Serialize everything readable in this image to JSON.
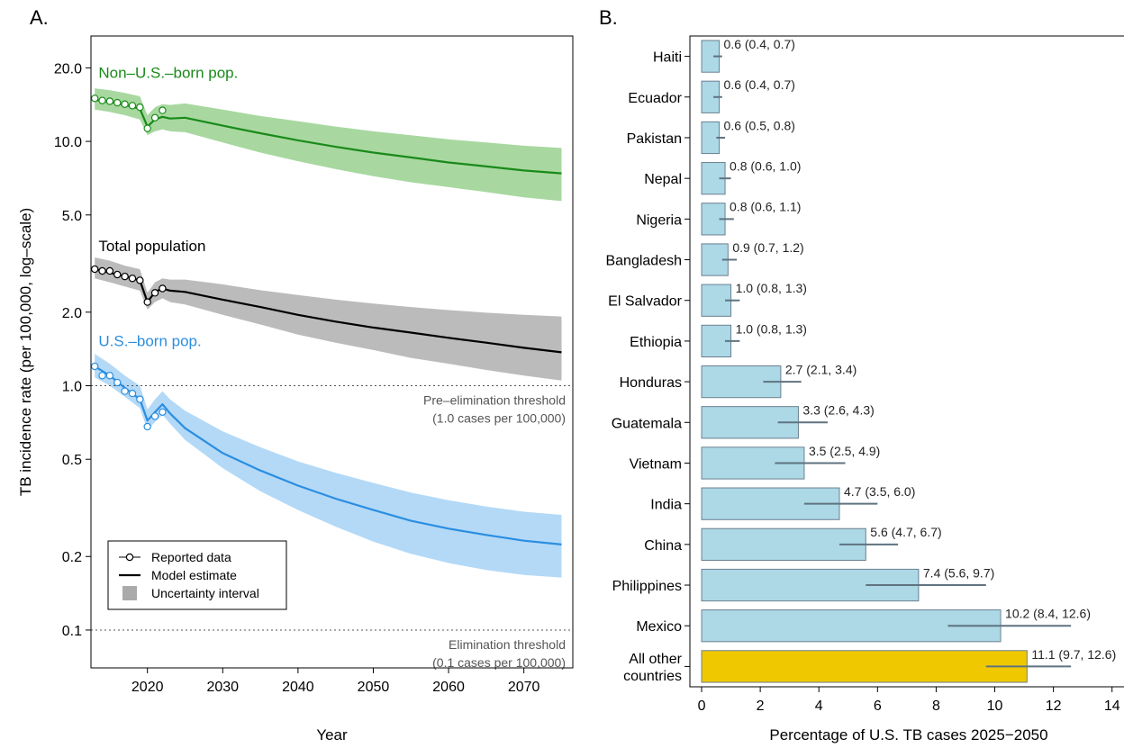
{
  "panels": {
    "a_tag": "A.",
    "b_tag": "B."
  },
  "chart_data": [
    {
      "type": "line",
      "panel": "A.",
      "xlabel": "Year",
      "ylabel": "TB incidence rate (per 100,000, log–scale)",
      "xlim": [
        2012.5,
        2076.5
      ],
      "ylim": [
        0.07,
        27
      ],
      "yscale": "log",
      "x_ticks": [
        2020,
        2030,
        2040,
        2050,
        2060,
        2070
      ],
      "y_ticks": [
        0.1,
        0.2,
        0.5,
        1.0,
        2.0,
        5.0,
        10.0,
        20.0
      ],
      "y_tick_labels": [
        "0.1",
        "0.2",
        "0.5",
        "1.0",
        "2.0",
        "5.0",
        "10.0",
        "20.0"
      ],
      "grid": false,
      "thresholds": [
        {
          "y": 1.0,
          "line1": "Pre–elimination threshold",
          "line2": "(1.0 cases per 100,000)"
        },
        {
          "y": 0.1,
          "line1": "Elimination threshold",
          "line2": "(0.1 cases per 100,000)"
        }
      ],
      "legend": {
        "placement": "bottom-left",
        "items": [
          "Reported data",
          "Model estimate",
          "Uncertainty interval"
        ]
      },
      "series": [
        {
          "name": "Non–U.S.–born pop.",
          "color": "#1a8a1a",
          "band_color": "#a8d8a0",
          "reported_x": [
            2013,
            2014,
            2015,
            2016,
            2017,
            2018,
            2019,
            2020,
            2021,
            2022
          ],
          "reported_y": [
            15.0,
            14.7,
            14.6,
            14.4,
            14.2,
            14.0,
            13.8,
            11.3,
            12.5,
            13.4
          ],
          "model_x": [
            2013,
            2015,
            2017,
            2019,
            2020,
            2021,
            2022,
            2023,
            2025,
            2030,
            2035,
            2040,
            2045,
            2050,
            2055,
            2060,
            2065,
            2070,
            2075
          ],
          "model_y": [
            14.8,
            14.5,
            14.1,
            13.6,
            11.5,
            12.3,
            12.6,
            12.4,
            12.5,
            11.6,
            10.8,
            10.1,
            9.5,
            9.0,
            8.6,
            8.2,
            7.9,
            7.6,
            7.4
          ],
          "lower_y": [
            13.5,
            13.2,
            12.8,
            12.3,
            10.6,
            11.0,
            11.2,
            11.0,
            10.9,
            9.9,
            9.0,
            8.3,
            7.7,
            7.2,
            6.8,
            6.5,
            6.2,
            5.9,
            5.7
          ],
          "upper_y": [
            16.5,
            16.2,
            15.8,
            15.3,
            12.8,
            13.8,
            14.2,
            14.1,
            14.3,
            13.5,
            12.7,
            12.1,
            11.5,
            11.0,
            10.6,
            10.2,
            9.9,
            9.6,
            9.4
          ]
        },
        {
          "name": "Total population",
          "color": "#000000",
          "band_color": "#bbbbbb",
          "reported_x": [
            2013,
            2014,
            2015,
            2016,
            2017,
            2018,
            2019,
            2020,
            2021,
            2022
          ],
          "reported_y": [
            3.0,
            2.95,
            2.95,
            2.85,
            2.8,
            2.75,
            2.7,
            2.2,
            2.4,
            2.5
          ],
          "model_x": [
            2013,
            2015,
            2017,
            2019,
            2020,
            2021,
            2022,
            2023,
            2025,
            2030,
            2035,
            2040,
            2045,
            2050,
            2055,
            2060,
            2065,
            2070,
            2075
          ],
          "model_y": [
            3.0,
            2.9,
            2.8,
            2.7,
            2.2,
            2.42,
            2.5,
            2.45,
            2.42,
            2.25,
            2.1,
            1.95,
            1.83,
            1.73,
            1.65,
            1.57,
            1.5,
            1.43,
            1.37
          ],
          "lower_y": [
            2.75,
            2.65,
            2.55,
            2.45,
            2.05,
            2.2,
            2.28,
            2.2,
            2.15,
            1.95,
            1.78,
            1.62,
            1.5,
            1.4,
            1.3,
            1.23,
            1.16,
            1.1,
            1.05
          ],
          "upper_y": [
            3.35,
            3.25,
            3.1,
            3.0,
            2.4,
            2.65,
            2.75,
            2.72,
            2.72,
            2.6,
            2.46,
            2.35,
            2.25,
            2.17,
            2.1,
            2.04,
            1.99,
            1.95,
            1.92
          ]
        },
        {
          "name": "U.S.–born pop.",
          "color": "#2b8ee0",
          "band_color": "#b3d9f7",
          "reported_x": [
            2013,
            2014,
            2015,
            2016,
            2017,
            2018,
            2019,
            2020,
            2021,
            2022
          ],
          "reported_y": [
            1.2,
            1.1,
            1.1,
            1.03,
            0.95,
            0.93,
            0.88,
            0.68,
            0.75,
            0.78
          ],
          "model_x": [
            2013,
            2015,
            2017,
            2019,
            2020,
            2021,
            2022,
            2023,
            2025,
            2030,
            2035,
            2040,
            2045,
            2050,
            2055,
            2060,
            2065,
            2070,
            2075
          ],
          "model_y": [
            1.2,
            1.1,
            0.98,
            0.88,
            0.72,
            0.78,
            0.84,
            0.77,
            0.67,
            0.53,
            0.45,
            0.39,
            0.345,
            0.31,
            0.28,
            0.26,
            0.245,
            0.232,
            0.224
          ],
          "lower_y": [
            1.08,
            1.0,
            0.9,
            0.81,
            0.66,
            0.71,
            0.76,
            0.7,
            0.6,
            0.46,
            0.37,
            0.31,
            0.265,
            0.23,
            0.205,
            0.188,
            0.176,
            0.168,
            0.164
          ],
          "upper_y": [
            1.35,
            1.23,
            1.1,
            1.0,
            0.8,
            0.88,
            0.95,
            0.88,
            0.79,
            0.65,
            0.56,
            0.49,
            0.44,
            0.4,
            0.365,
            0.34,
            0.32,
            0.305,
            0.296
          ]
        }
      ]
    },
    {
      "type": "bar",
      "panel": "B.",
      "orientation": "horizontal",
      "xlabel": "Percentage of U.S. TB cases 2025−2050",
      "xlim": [
        -0.4,
        14.5
      ],
      "x_ticks": [
        0,
        2,
        4,
        6,
        8,
        10,
        12,
        14
      ],
      "bar_color": "#add8e6",
      "highlight_color": "#f0c800",
      "errorbar_color": "#5f7380",
      "categories": [
        "Haiti",
        "Ecuador",
        "Pakistan",
        "Nepal",
        "Nigeria",
        "Bangladesh",
        "El Salvador",
        "Ethiopia",
        "Honduras",
        "Guatemala",
        "Vietnam",
        "India",
        "China",
        "Philippines",
        "Mexico",
        "All other countries"
      ],
      "category_lines": [
        [
          "Haiti"
        ],
        [
          "Ecuador"
        ],
        [
          "Pakistan"
        ],
        [
          "Nepal"
        ],
        [
          "Nigeria"
        ],
        [
          "Bangladesh"
        ],
        [
          "El Salvador"
        ],
        [
          "Ethiopia"
        ],
        [
          "Honduras"
        ],
        [
          "Guatemala"
        ],
        [
          "Vietnam"
        ],
        [
          "India"
        ],
        [
          "China"
        ],
        [
          "Philippines"
        ],
        [
          "Mexico"
        ],
        [
          "All other",
          "countries"
        ]
      ],
      "values": [
        0.6,
        0.6,
        0.6,
        0.8,
        0.8,
        0.9,
        1.0,
        1.0,
        2.7,
        3.3,
        3.5,
        4.7,
        5.6,
        7.4,
        10.2,
        11.1
      ],
      "lower": [
        0.4,
        0.4,
        0.5,
        0.6,
        0.6,
        0.7,
        0.8,
        0.8,
        2.1,
        2.6,
        2.5,
        3.5,
        4.7,
        5.6,
        8.4,
        9.7
      ],
      "upper": [
        0.7,
        0.7,
        0.8,
        1.0,
        1.1,
        1.2,
        1.3,
        1.3,
        3.4,
        4.3,
        4.9,
        6.0,
        6.7,
        9.7,
        12.6,
        12.6
      ],
      "labels": [
        "0.6 (0.4, 0.7)",
        "0.6 (0.4, 0.7)",
        "0.6 (0.5, 0.8)",
        "0.8 (0.6, 1.0)",
        "0.8 (0.6, 1.1)",
        "0.9 (0.7, 1.2)",
        "1.0 (0.8, 1.3)",
        "1.0 (0.8, 1.3)",
        "2.7 (2.1, 3.4)",
        "3.3 (2.6, 4.3)",
        "3.5 (2.5, 4.9)",
        "4.7 (3.5, 6.0)",
        "5.6 (4.7, 6.7)",
        "7.4 (5.6, 9.7)",
        "10.2 (8.4, 12.6)",
        "11.1 (9.7, 12.6)"
      ]
    }
  ]
}
